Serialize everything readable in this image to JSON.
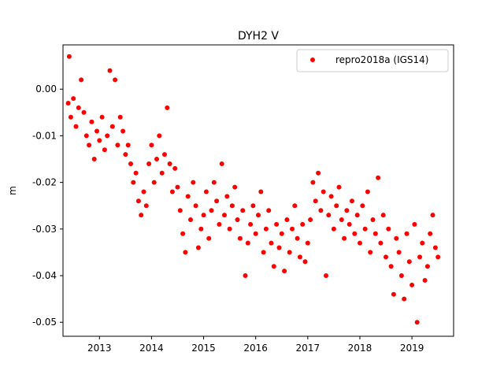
{
  "chart_data": {
    "type": "scatter",
    "title": "DYH2 V",
    "xlabel": "",
    "ylabel": "m",
    "xlim": [
      2012.3,
      2019.8
    ],
    "ylim": [
      -0.053,
      0.0095
    ],
    "x_ticks": [
      "2013",
      "2014",
      "2015",
      "2016",
      "2017",
      "2018",
      "2019"
    ],
    "y_ticks": [
      "0.00",
      "-0.01",
      "-0.02",
      "-0.03",
      "-0.04",
      "-0.05"
    ],
    "legend_position": "top-right",
    "grid": false,
    "series": [
      {
        "name": "repro2018a (IGS14)",
        "color": "#ff0000",
        "marker": "circle",
        "points": [
          [
            2012.4,
            -0.003
          ],
          [
            2012.42,
            0.007
          ],
          [
            2012.45,
            -0.006
          ],
          [
            2012.5,
            -0.002
          ],
          [
            2012.55,
            -0.008
          ],
          [
            2012.6,
            -0.004
          ],
          [
            2012.65,
            0.002
          ],
          [
            2012.7,
            -0.005
          ],
          [
            2012.75,
            -0.01
          ],
          [
            2012.8,
            -0.012
          ],
          [
            2012.85,
            -0.007
          ],
          [
            2012.9,
            -0.015
          ],
          [
            2012.95,
            -0.009
          ],
          [
            2013.0,
            -0.011
          ],
          [
            2013.05,
            -0.006
          ],
          [
            2013.1,
            -0.013
          ],
          [
            2013.15,
            -0.01
          ],
          [
            2013.2,
            0.004
          ],
          [
            2013.25,
            -0.008
          ],
          [
            2013.3,
            0.002
          ],
          [
            2013.35,
            -0.012
          ],
          [
            2013.4,
            -0.006
          ],
          [
            2013.45,
            -0.009
          ],
          [
            2013.5,
            -0.014
          ],
          [
            2013.55,
            -0.012
          ],
          [
            2013.6,
            -0.016
          ],
          [
            2013.65,
            -0.02
          ],
          [
            2013.7,
            -0.018
          ],
          [
            2013.75,
            -0.024
          ],
          [
            2013.8,
            -0.027
          ],
          [
            2013.85,
            -0.022
          ],
          [
            2013.9,
            -0.025
          ],
          [
            2013.95,
            -0.016
          ],
          [
            2014.0,
            -0.012
          ],
          [
            2014.05,
            -0.02
          ],
          [
            2014.1,
            -0.015
          ],
          [
            2014.15,
            -0.01
          ],
          [
            2014.2,
            -0.018
          ],
          [
            2014.25,
            -0.014
          ],
          [
            2014.3,
            -0.004
          ],
          [
            2014.35,
            -0.016
          ],
          [
            2014.4,
            -0.022
          ],
          [
            2014.45,
            -0.017
          ],
          [
            2014.5,
            -0.021
          ],
          [
            2014.55,
            -0.026
          ],
          [
            2014.6,
            -0.031
          ],
          [
            2014.65,
            -0.035
          ],
          [
            2014.7,
            -0.023
          ],
          [
            2014.75,
            -0.028
          ],
          [
            2014.8,
            -0.02
          ],
          [
            2014.85,
            -0.025
          ],
          [
            2014.9,
            -0.034
          ],
          [
            2014.95,
            -0.03
          ],
          [
            2015.0,
            -0.027
          ],
          [
            2015.05,
            -0.022
          ],
          [
            2015.1,
            -0.032
          ],
          [
            2015.15,
            -0.026
          ],
          [
            2015.2,
            -0.02
          ],
          [
            2015.25,
            -0.024
          ],
          [
            2015.3,
            -0.029
          ],
          [
            2015.35,
            -0.016
          ],
          [
            2015.4,
            -0.027
          ],
          [
            2015.45,
            -0.023
          ],
          [
            2015.5,
            -0.03
          ],
          [
            2015.55,
            -0.025
          ],
          [
            2015.6,
            -0.021
          ],
          [
            2015.65,
            -0.028
          ],
          [
            2015.7,
            -0.032
          ],
          [
            2015.75,
            -0.026
          ],
          [
            2015.8,
            -0.04
          ],
          [
            2015.85,
            -0.033
          ],
          [
            2015.9,
            -0.029
          ],
          [
            2015.95,
            -0.025
          ],
          [
            2016.0,
            -0.031
          ],
          [
            2016.05,
            -0.027
          ],
          [
            2016.1,
            -0.022
          ],
          [
            2016.15,
            -0.035
          ],
          [
            2016.2,
            -0.03
          ],
          [
            2016.25,
            -0.026
          ],
          [
            2016.3,
            -0.033
          ],
          [
            2016.35,
            -0.038
          ],
          [
            2016.4,
            -0.029
          ],
          [
            2016.45,
            -0.034
          ],
          [
            2016.5,
            -0.031
          ],
          [
            2016.55,
            -0.039
          ],
          [
            2016.6,
            -0.028
          ],
          [
            2016.65,
            -0.035
          ],
          [
            2016.7,
            -0.03
          ],
          [
            2016.75,
            -0.025
          ],
          [
            2016.8,
            -0.032
          ],
          [
            2016.85,
            -0.036
          ],
          [
            2016.9,
            -0.029
          ],
          [
            2016.95,
            -0.037
          ],
          [
            2017.0,
            -0.033
          ],
          [
            2017.05,
            -0.028
          ],
          [
            2017.1,
            -0.02
          ],
          [
            2017.15,
            -0.024
          ],
          [
            2017.2,
            -0.018
          ],
          [
            2017.25,
            -0.026
          ],
          [
            2017.3,
            -0.022
          ],
          [
            2017.35,
            -0.04
          ],
          [
            2017.4,
            -0.027
          ],
          [
            2017.45,
            -0.023
          ],
          [
            2017.5,
            -0.03
          ],
          [
            2017.55,
            -0.025
          ],
          [
            2017.6,
            -0.021
          ],
          [
            2017.65,
            -0.028
          ],
          [
            2017.7,
            -0.032
          ],
          [
            2017.75,
            -0.026
          ],
          [
            2017.8,
            -0.029
          ],
          [
            2017.85,
            -0.024
          ],
          [
            2017.9,
            -0.031
          ],
          [
            2017.95,
            -0.027
          ],
          [
            2018.0,
            -0.033
          ],
          [
            2018.05,
            -0.025
          ],
          [
            2018.1,
            -0.03
          ],
          [
            2018.15,
            -0.022
          ],
          [
            2018.2,
            -0.035
          ],
          [
            2018.25,
            -0.028
          ],
          [
            2018.3,
            -0.031
          ],
          [
            2018.35,
            -0.019
          ],
          [
            2018.4,
            -0.033
          ],
          [
            2018.45,
            -0.027
          ],
          [
            2018.5,
            -0.036
          ],
          [
            2018.55,
            -0.03
          ],
          [
            2018.6,
            -0.038
          ],
          [
            2018.65,
            -0.044
          ],
          [
            2018.7,
            -0.032
          ],
          [
            2018.75,
            -0.035
          ],
          [
            2018.8,
            -0.04
          ],
          [
            2018.85,
            -0.045
          ],
          [
            2018.9,
            -0.031
          ],
          [
            2018.95,
            -0.037
          ],
          [
            2019.0,
            -0.042
          ],
          [
            2019.05,
            -0.029
          ],
          [
            2019.1,
            -0.05
          ],
          [
            2019.15,
            -0.036
          ],
          [
            2019.2,
            -0.033
          ],
          [
            2019.25,
            -0.041
          ],
          [
            2019.3,
            -0.038
          ],
          [
            2019.35,
            -0.031
          ],
          [
            2019.4,
            -0.027
          ],
          [
            2019.45,
            -0.034
          ],
          [
            2019.5,
            -0.036
          ]
        ]
      }
    ]
  }
}
